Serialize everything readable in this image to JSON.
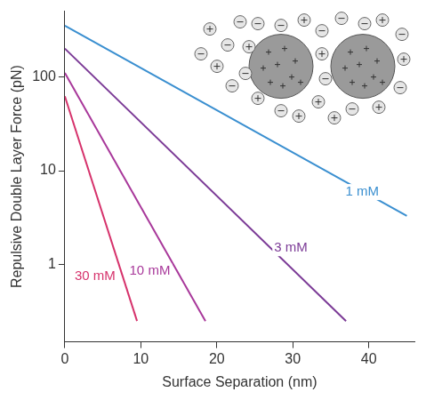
{
  "chart_data": {
    "type": "line",
    "x_label": "Surface Separation (nm)",
    "y_label": "Repulsive Double Layer Force (pN)",
    "log": "y",
    "grid": false,
    "xlim": [
      0,
      46
    ],
    "xticks": [
      0,
      10,
      20,
      30,
      40
    ],
    "ylim": [
      0.15,
      500
    ],
    "yticks": [
      1,
      10,
      100
    ],
    "series": [
      {
        "name": "1 mM",
        "color": "#3a8fd0",
        "x": [
          0,
          45
        ],
        "values": [
          350,
          3.3
        ]
      },
      {
        "name": "3 mM",
        "color": "#7b3a96",
        "x": [
          0,
          37
        ],
        "values": [
          200,
          0.25
        ]
      },
      {
        "name": "10 mM",
        "color": "#a8389a",
        "x": [
          0,
          18.5
        ],
        "values": [
          110,
          0.25
        ]
      },
      {
        "name": "30 mM",
        "color": "#d6336c",
        "x": [
          0,
          9.5
        ],
        "values": [
          62,
          0.25
        ]
      }
    ]
  }
}
